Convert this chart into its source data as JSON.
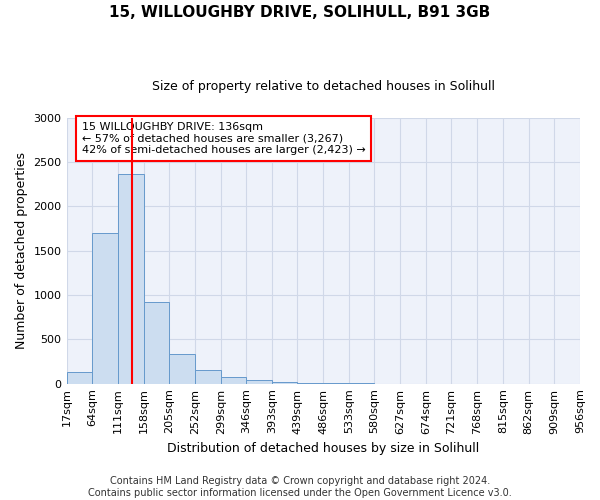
{
  "title": "15, WILLOUGHBY DRIVE, SOLIHULL, B91 3GB",
  "subtitle": "Size of property relative to detached houses in Solihull",
  "xlabel": "Distribution of detached houses by size in Solihull",
  "ylabel": "Number of detached properties",
  "footer1": "Contains HM Land Registry data © Crown copyright and database right 2024.",
  "footer2": "Contains public sector information licensed under the Open Government Licence v3.0.",
  "bin_labels": [
    "17sqm",
    "64sqm",
    "111sqm",
    "158sqm",
    "205sqm",
    "252sqm",
    "299sqm",
    "346sqm",
    "393sqm",
    "439sqm",
    "486sqm",
    "533sqm",
    "580sqm",
    "627sqm",
    "674sqm",
    "721sqm",
    "768sqm",
    "815sqm",
    "862sqm",
    "909sqm",
    "956sqm"
  ],
  "bar_values": [
    130,
    1700,
    2370,
    920,
    340,
    150,
    80,
    40,
    20,
    10,
    5,
    3,
    0,
    0,
    0,
    0,
    0,
    0,
    0,
    0
  ],
  "bar_color": "#ccddf0",
  "bar_edge_color": "#6699cc",
  "ylim": [
    0,
    3000
  ],
  "yticks": [
    0,
    500,
    1000,
    1500,
    2000,
    2500,
    3000
  ],
  "red_line_x": 136,
  "bin_edges": [
    17,
    64,
    111,
    158,
    205,
    252,
    299,
    346,
    393,
    439,
    486,
    533,
    580,
    627,
    674,
    721,
    768,
    815,
    862,
    909,
    956
  ],
  "annotation_text": "15 WILLOUGHBY DRIVE: 136sqm\n← 57% of detached houses are smaller (3,267)\n42% of semi-detached houses are larger (2,423) →",
  "grid_color": "#d0d8e8",
  "background_color": "#eef2fa",
  "title_fontsize": 11,
  "subtitle_fontsize": 9,
  "ylabel_fontsize": 9,
  "xlabel_fontsize": 9,
  "tick_fontsize": 8,
  "footer_fontsize": 7
}
